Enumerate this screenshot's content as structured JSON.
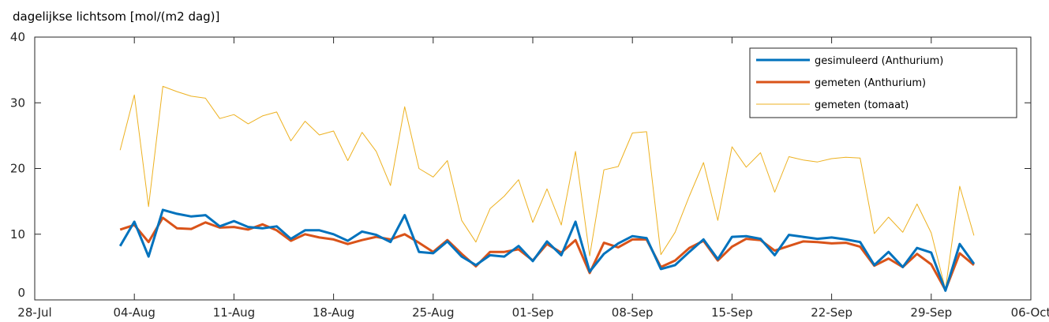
{
  "chart_data": {
    "type": "line",
    "title": "dagelijkse lichtsom [mol/(m2 dag)]",
    "x_ticks": [
      "28-Jul",
      "04-Aug",
      "11-Aug",
      "18-Aug",
      "25-Aug",
      "01-Sep",
      "08-Sep",
      "15-Sep",
      "22-Sep",
      "29-Sep",
      "06-Oct"
    ],
    "xlim": [
      "2023-07-28",
      "2023-10-06"
    ],
    "ylim": [
      0,
      40
    ],
    "y_ticks": [
      0,
      10,
      20,
      30,
      40
    ],
    "legend_position": "top-right",
    "dates": [
      "2023-08-03",
      "2023-08-04",
      "2023-08-05",
      "2023-08-06",
      "2023-08-07",
      "2023-08-08",
      "2023-08-09",
      "2023-08-10",
      "2023-08-11",
      "2023-08-12",
      "2023-08-13",
      "2023-08-14",
      "2023-08-15",
      "2023-08-16",
      "2023-08-17",
      "2023-08-18",
      "2023-08-19",
      "2023-08-20",
      "2023-08-21",
      "2023-08-22",
      "2023-08-23",
      "2023-08-24",
      "2023-08-25",
      "2023-08-26",
      "2023-08-27",
      "2023-08-28",
      "2023-08-29",
      "2023-08-30",
      "2023-08-31",
      "2023-09-01",
      "2023-09-02",
      "2023-09-03",
      "2023-09-04",
      "2023-09-05",
      "2023-09-06",
      "2023-09-07",
      "2023-09-08",
      "2023-09-09",
      "2023-09-10",
      "2023-09-11",
      "2023-09-12",
      "2023-09-13",
      "2023-09-14",
      "2023-09-15",
      "2023-09-16",
      "2023-09-17",
      "2023-09-18",
      "2023-09-19",
      "2023-09-20",
      "2023-09-21",
      "2023-09-22",
      "2023-09-23",
      "2023-09-24",
      "2023-09-25",
      "2023-09-26",
      "2023-09-27",
      "2023-09-28",
      "2023-09-29",
      "2023-09-30",
      "2023-10-01",
      "2023-10-02"
    ],
    "series": [
      {
        "name": "gemeten (tomaat)",
        "color": "#EDB120",
        "width": 1,
        "values": [
          22.8,
          31.2,
          14.2,
          32.5,
          31.7,
          31.0,
          30.7,
          27.6,
          28.2,
          26.8,
          28.0,
          28.6,
          24.2,
          27.2,
          25.1,
          25.7,
          21.2,
          25.5,
          22.6,
          17.4,
          29.4,
          20.0,
          18.7,
          21.2,
          12.1,
          8.8,
          13.9,
          15.8,
          18.3,
          11.8,
          16.9,
          11.4,
          22.6,
          6.7,
          19.8,
          20.3,
          25.4,
          25.6,
          6.9,
          10.3,
          15.8,
          20.9,
          12.1,
          23.3,
          20.2,
          22.4,
          16.4,
          21.8,
          21.3,
          21.0,
          21.5,
          21.7,
          21.6,
          10.1,
          12.6,
          10.3,
          14.6,
          10.2,
          1.6,
          17.3,
          9.8
        ]
      },
      {
        "name": "gemeten (Anthurium)",
        "color": "#D95319",
        "width": 3,
        "values": [
          10.7,
          11.4,
          8.8,
          12.5,
          10.9,
          10.8,
          11.8,
          11.0,
          11.1,
          10.7,
          11.5,
          10.6,
          9.0,
          10.0,
          9.5,
          9.2,
          8.5,
          9.1,
          9.6,
          9.2,
          10.0,
          8.7,
          7.3,
          9.1,
          7.0,
          5.1,
          7.3,
          7.3,
          7.7,
          6.0,
          8.5,
          7.2,
          9.1,
          4.1,
          8.7,
          8.0,
          9.2,
          9.2,
          5.0,
          6.0,
          7.9,
          9.0,
          6.0,
          8.1,
          9.3,
          9.1,
          7.5,
          8.2,
          8.9,
          8.8,
          8.6,
          8.7,
          8.1,
          5.2,
          6.3,
          5.0,
          7.0,
          5.4,
          1.5,
          7.1,
          5.3
        ]
      },
      {
        "name": "gesimuleerd (Anthurium)",
        "color": "#0072BD",
        "width": 3,
        "values": [
          8.2,
          11.9,
          6.6,
          13.7,
          13.1,
          12.7,
          12.9,
          11.2,
          12.0,
          11.1,
          10.9,
          11.2,
          9.3,
          10.6,
          10.6,
          10.0,
          9.0,
          10.4,
          9.9,
          8.8,
          12.9,
          7.3,
          7.1,
          8.9,
          6.6,
          5.3,
          6.8,
          6.6,
          8.2,
          5.9,
          8.9,
          6.8,
          11.9,
          4.3,
          7.0,
          8.6,
          9.7,
          9.4,
          4.7,
          5.3,
          7.3,
          9.2,
          6.2,
          9.6,
          9.7,
          9.3,
          6.8,
          9.9,
          9.6,
          9.3,
          9.5,
          9.2,
          8.8,
          5.3,
          7.3,
          5.0,
          7.9,
          7.2,
          1.4,
          8.5,
          5.5
        ]
      }
    ],
    "legend_order": [
      "gesimuleerd (Anthurium)",
      "gemeten (Anthurium)",
      "gemeten (tomaat)"
    ]
  }
}
